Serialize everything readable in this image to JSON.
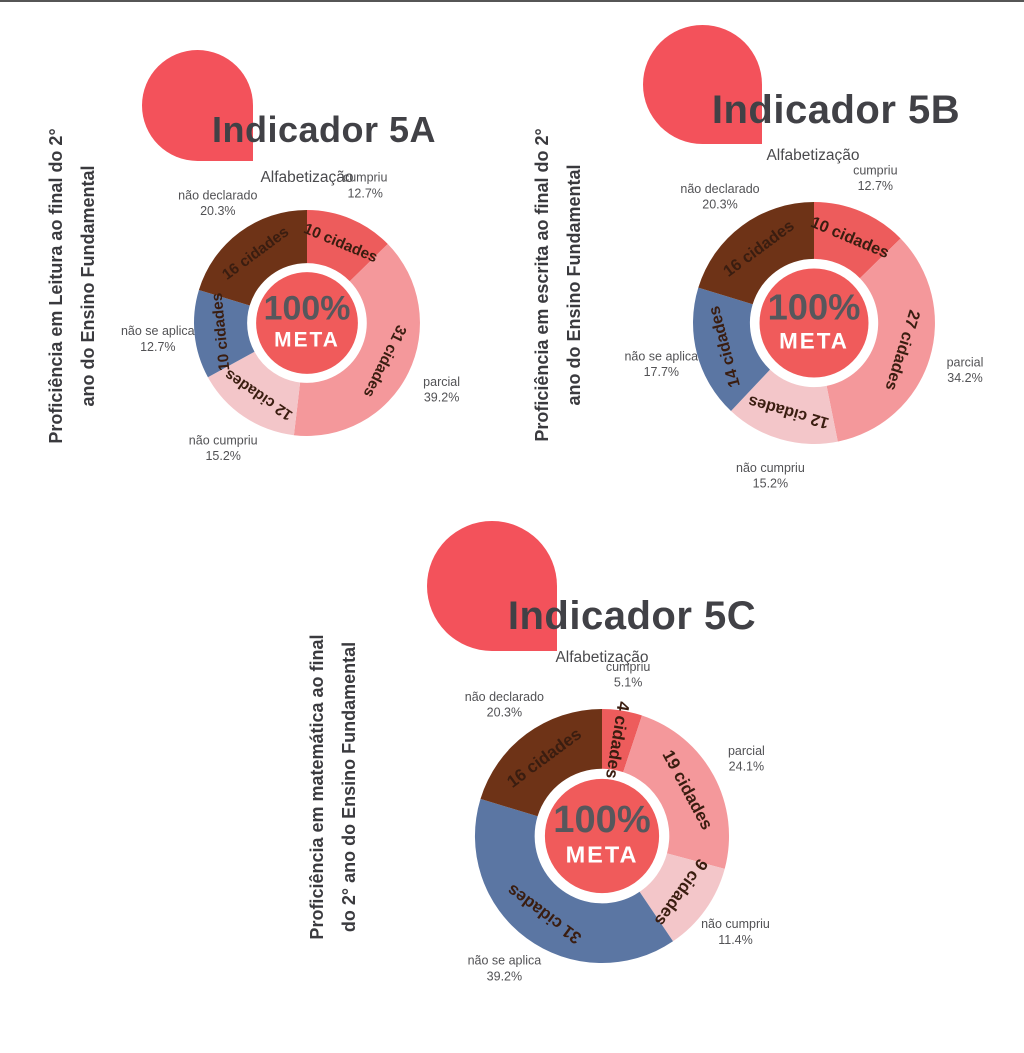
{
  "page": {
    "top_border_color": "#565656",
    "background": "#ffffff"
  },
  "palette": {
    "cumpriu_red": "#ED5C5C",
    "parcial_pink": "#F4989B",
    "nao_cumpriu_pink": "#F3C6C9",
    "nao_se_aplica_blue": "#5B76A3",
    "nao_declarado_brown": "#6E3317",
    "blob_red": "#F3525B",
    "center_red": "#F05B5B",
    "center_value_gray": "#57575C",
    "center_label_white": "#FFFFFF",
    "title_gray": "#414146",
    "subtitle_gray": "#4A4A4D",
    "side_label_gray": "#3A3A3E",
    "outer_label_gray": "#525255",
    "inner_label_dark": "#3A1D10"
  },
  "chart_data": [
    {
      "type": "donut",
      "title": "Indicador 5A",
      "subtitle": "Alfabetização",
      "side_label_line1": "Proficiência em Leitura ao final do 2°",
      "side_label_line2": "ano do Ensino Fundamental",
      "center_value": "100%",
      "center_label": "META",
      "units_suffix": "cidades",
      "start_angle_deg": 0,
      "direction": "clockwise",
      "legend_position": "around",
      "slices": [
        {
          "label": "cumpriu",
          "percent": 12.7,
          "cities": 10,
          "color": "#ED5C5C"
        },
        {
          "label": "parcial",
          "percent": 39.2,
          "cities": 31,
          "color": "#F4989B"
        },
        {
          "label": "não cumpriu",
          "percent": 15.2,
          "cities": 12,
          "color": "#F3C6C9"
        },
        {
          "label": "não se aplica",
          "percent": 12.7,
          "cities": 10,
          "color": "#5B76A3"
        },
        {
          "label": "não declarado",
          "percent": 20.3,
          "cities": 16,
          "color": "#6E3317"
        }
      ]
    },
    {
      "type": "donut",
      "title": "Indicador 5B",
      "subtitle": "Alfabetização",
      "side_label_line1": "Proficiência em escrita ao final do 2°",
      "side_label_line2": "ano do Ensino Fundamental",
      "center_value": "100%",
      "center_label": "META",
      "units_suffix": "cidades",
      "start_angle_deg": 0,
      "direction": "clockwise",
      "legend_position": "around",
      "slices": [
        {
          "label": "cumpriu",
          "percent": 12.7,
          "cities": 10,
          "color": "#ED5C5C"
        },
        {
          "label": "parcial",
          "percent": 34.2,
          "cities": 27,
          "color": "#F4989B"
        },
        {
          "label": "não cumpriu",
          "percent": 15.2,
          "cities": 12,
          "color": "#F3C6C9"
        },
        {
          "label": "não se aplica",
          "percent": 17.7,
          "cities": 14,
          "color": "#5B76A3"
        },
        {
          "label": "não declarado",
          "percent": 20.3,
          "cities": 16,
          "color": "#6E3317"
        }
      ]
    },
    {
      "type": "donut",
      "title": "Indicador 5C",
      "subtitle": "Alfabetização",
      "side_label_line1": "Proficiência em matemática ao final",
      "side_label_line2": "do 2° ano do Ensino Fundamental",
      "center_value": "100%",
      "center_label": "META",
      "units_suffix": "cidades",
      "start_angle_deg": 0,
      "direction": "clockwise",
      "legend_position": "around",
      "slices": [
        {
          "label": "cumpriu",
          "percent": 5.1,
          "cities": 4,
          "color": "#ED5C5C"
        },
        {
          "label": "parcial",
          "percent": 24.1,
          "cities": 19,
          "color": "#F4989B"
        },
        {
          "label": "não cumpriu",
          "percent": 11.4,
          "cities": 9,
          "color": "#F3C6C9"
        },
        {
          "label": "não se aplica",
          "percent": 39.2,
          "cities": 31,
          "color": "#5B76A3"
        },
        {
          "label": "não declarado",
          "percent": 20.3,
          "cities": 16,
          "color": "#6E3317"
        }
      ]
    }
  ]
}
